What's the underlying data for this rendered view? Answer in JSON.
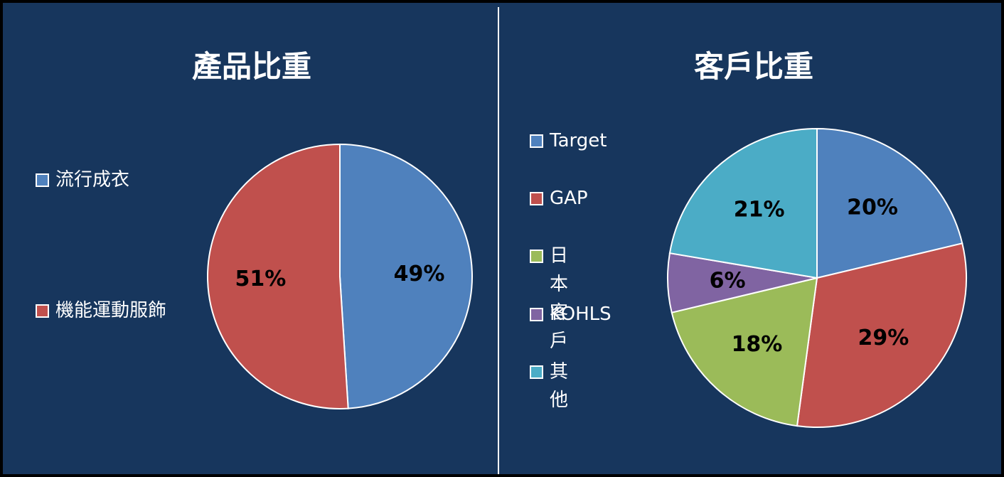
{
  "chart_data": [
    {
      "type": "pie",
      "title": "產品比重",
      "categories": [
        "流行成衣",
        "機能運動服飾"
      ],
      "values": [
        49,
        51
      ],
      "data_labels": [
        "49%",
        "51%"
      ],
      "colors": [
        "#4f81bd",
        "#c0504d"
      ],
      "legend": "left"
    },
    {
      "type": "pie",
      "title": "客戶比重",
      "categories": [
        "Target",
        "GAP",
        "日本客戶",
        "KOHLS",
        "其他"
      ],
      "values": [
        20,
        29,
        18,
        6,
        21
      ],
      "data_labels": [
        "20%",
        "29%",
        "18%",
        "6%",
        "21%"
      ],
      "colors": [
        "#4f81bd",
        "#c0504d",
        "#9bbb59",
        "#8064a2",
        "#4bacc6"
      ],
      "legend": "left"
    }
  ]
}
